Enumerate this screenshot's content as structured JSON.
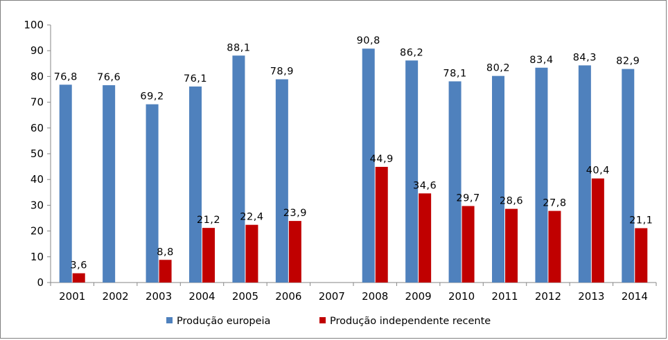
{
  "chart_data": {
    "type": "bar",
    "title": "",
    "xlabel": "",
    "ylabel": "",
    "ylim": [
      0,
      100
    ],
    "yticks": [
      0,
      10,
      20,
      30,
      40,
      50,
      60,
      70,
      80,
      90,
      100
    ],
    "grid": false,
    "legend_position": "bottom",
    "categories": [
      "2001",
      "2002",
      "2003",
      "2004",
      "2005",
      "2006",
      "2007",
      "2008",
      "2009",
      "2010",
      "2011",
      "2012",
      "2013",
      "2014"
    ],
    "series": [
      {
        "name": "Produção europeia",
        "color": "#4f81bd",
        "values": [
          76.8,
          76.6,
          69.2,
          76.1,
          88.1,
          78.9,
          null,
          90.8,
          86.2,
          78.1,
          80.2,
          83.4,
          84.3,
          82.9
        ],
        "labels": [
          "76,8",
          "76,6",
          "69,2",
          "76,1",
          "88,1",
          "78,9",
          null,
          "90,8",
          "86,2",
          "78,1",
          "80,2",
          "83,4",
          "84,3",
          "82,9"
        ]
      },
      {
        "name": "Produção independente recente",
        "color": "#c00000",
        "values": [
          3.6,
          null,
          8.8,
          21.2,
          22.4,
          23.9,
          null,
          44.9,
          34.6,
          29.7,
          28.6,
          27.8,
          40.4,
          21.1
        ],
        "labels": [
          "3,6",
          null,
          "8,8",
          "21,2",
          "22,4",
          "23,9",
          null,
          "44,9",
          "34,6",
          "29,7",
          "28,6",
          "27,8",
          "40,4",
          "21,1"
        ]
      }
    ]
  }
}
